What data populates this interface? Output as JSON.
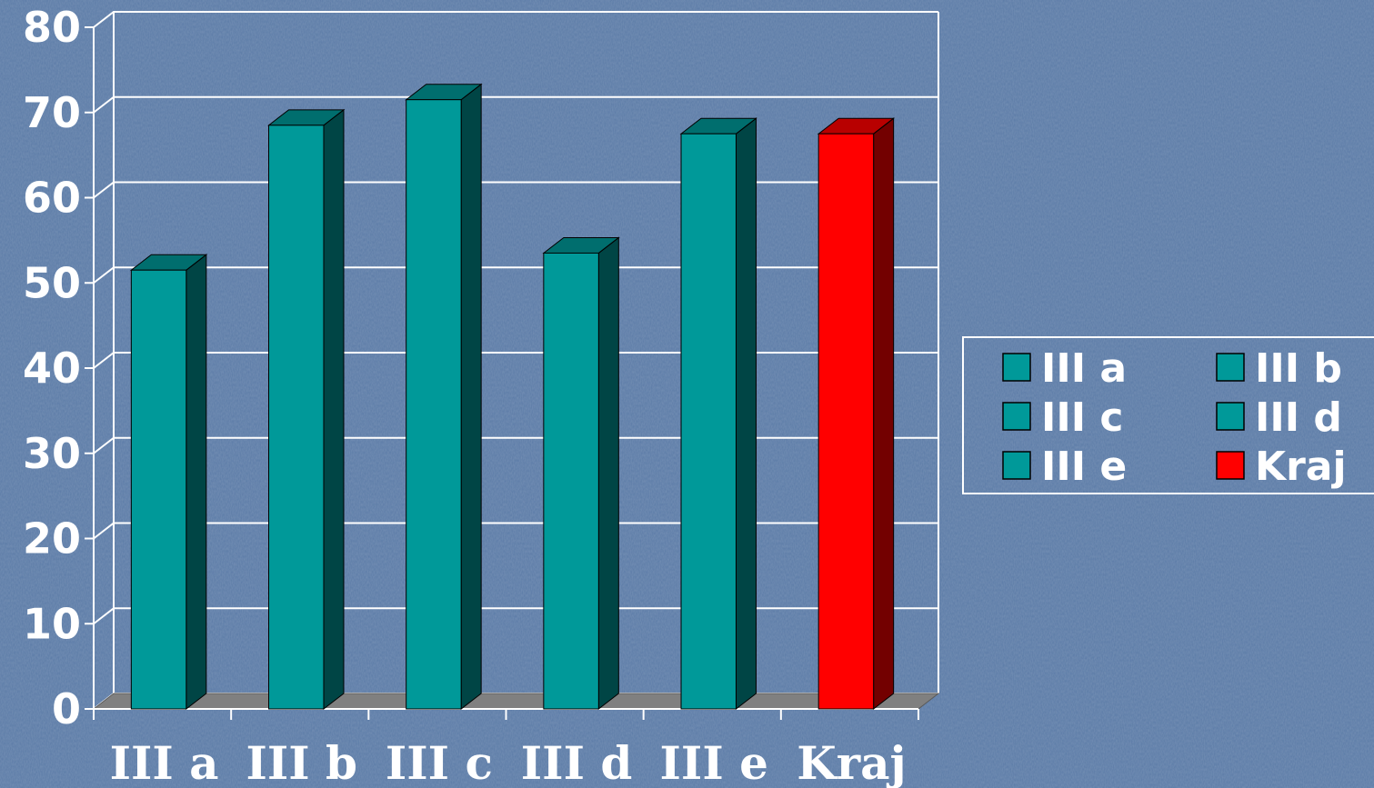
{
  "chart_data": {
    "type": "bar",
    "style": "3d-column",
    "categories": [
      "III a",
      "III b",
      "III c",
      "III d",
      "III e",
      "Kraj"
    ],
    "values": [
      51.5,
      68.5,
      71.5,
      53.5,
      67.5,
      67.5
    ],
    "colors": [
      "#009999",
      "#009999",
      "#009999",
      "#009999",
      "#009999",
      "#ff0000"
    ],
    "ylim": [
      0,
      80
    ],
    "yticks": [
      "0",
      "10",
      "20",
      "30",
      "40",
      "50",
      "60",
      "70",
      "80"
    ],
    "grid": true,
    "legend": {
      "placement": "right",
      "entries": [
        {
          "label": "III a",
          "color": "#009999"
        },
        {
          "label": "III b",
          "color": "#009999"
        },
        {
          "label": "III c",
          "color": "#009999"
        },
        {
          "label": "III d",
          "color": "#009999"
        },
        {
          "label": "III e",
          "color": "#009999"
        },
        {
          "label": "Kraj",
          "color": "#ff0000"
        }
      ]
    }
  },
  "theme": {
    "background": "#5a7aa6",
    "grid_color": "#ffffff",
    "floor_color": "#808080",
    "text_color": "#ffffff"
  }
}
